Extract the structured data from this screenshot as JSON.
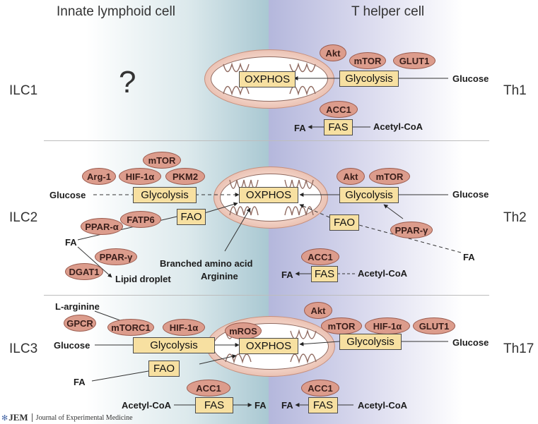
{
  "headers": {
    "left": "Innate lymphoid cell",
    "right": "T helper cell"
  },
  "rows": {
    "r1": {
      "left": "ILC1",
      "right": "Th1",
      "question": "?"
    },
    "r2": {
      "left": "ILC2",
      "right": "Th2"
    },
    "r3": {
      "left": "ILC3",
      "right": "Th17"
    }
  },
  "boxes": {
    "oxphos": "OXPHOS",
    "glycolysis": "Glycolysis",
    "fas": "FAS",
    "fao": "FAO"
  },
  "enzymes": {
    "akt": "Akt",
    "mtor": "mTOR",
    "glut1": "GLUT1",
    "acc1": "ACC1",
    "arg1": "Arg-1",
    "hif1a": "HIF-1α",
    "pkm2": "PKM2",
    "ppar_a": "PPAR-α",
    "fatp6": "FATP6",
    "ppar_g": "PPAR-γ",
    "dgat1": "DGAT1",
    "gpcr": "GPCR",
    "mtorc1": "mTORC1",
    "mros": "mROS"
  },
  "labels": {
    "glucose": "Glucose",
    "fa": "FA",
    "acetyl_coa": "Acetyl-CoA",
    "branched": "Branched amino acid",
    "arginine": "Arginine",
    "lipid_droplet": "Lipid droplet",
    "l_arginine": "L-arginine"
  },
  "colors": {
    "enzyme_fill": "#dc9c8c",
    "box_fill": "#f7e0a1",
    "ilc_side": "#a9c8d2",
    "th_side": "#b4b7dc",
    "mito_fill": "#f0cdc0"
  },
  "logo": {
    "name": "JEM",
    "full": "Journal of Experimental Medicine"
  }
}
